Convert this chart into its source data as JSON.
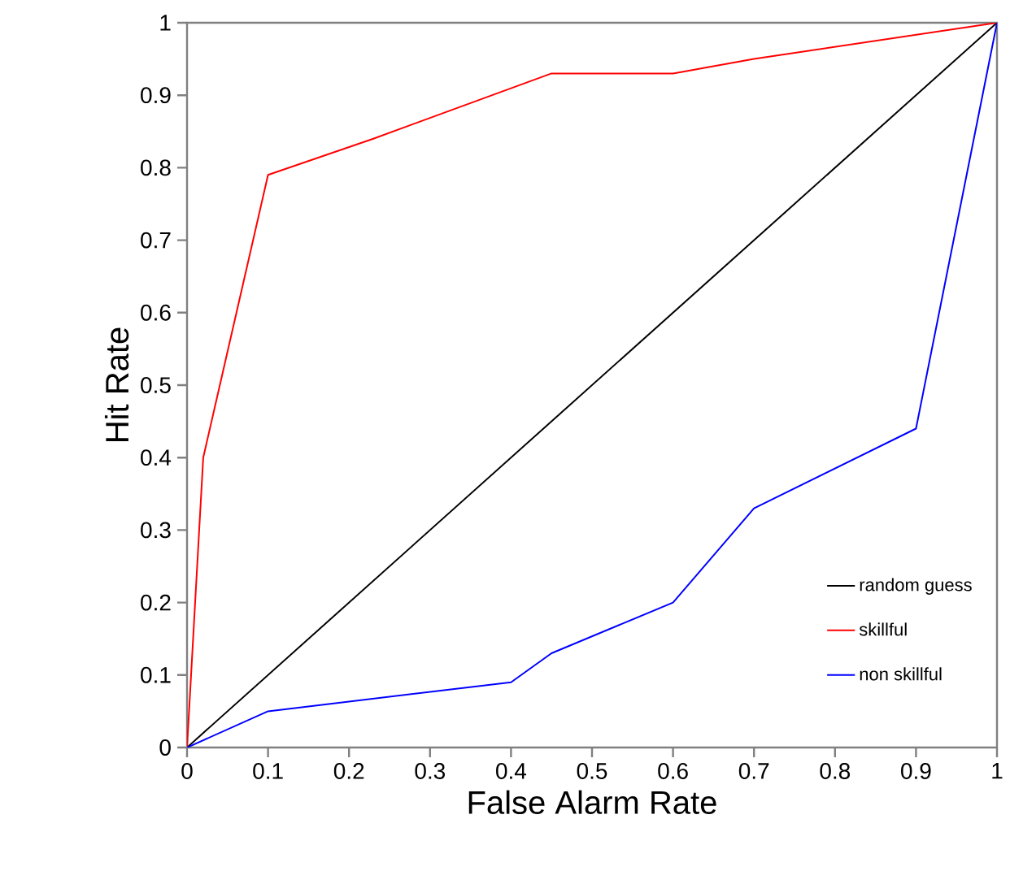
{
  "chart_data": {
    "type": "line",
    "xlabel": "False Alarm Rate",
    "ylabel": "Hit Rate",
    "xlim": [
      0,
      1
    ],
    "ylim": [
      0,
      1
    ],
    "xticks": [
      0,
      0.1,
      0.2,
      0.3,
      0.4,
      0.5,
      0.6,
      0.7,
      0.8,
      0.9,
      1
    ],
    "yticks": [
      0,
      0.1,
      0.2,
      0.3,
      0.4,
      0.5,
      0.6,
      0.7,
      0.8,
      0.9,
      1
    ],
    "legend": "bottom right",
    "grid": false,
    "marker": "none",
    "line_style": "solid",
    "series": [
      {
        "name": "random guess",
        "color": "#000000",
        "x": [
          0,
          1
        ],
        "values": [
          0,
          1
        ]
      },
      {
        "name": "skillful",
        "color": "#ff0000",
        "x": [
          0,
          0.02,
          0.1,
          0.23,
          0.45,
          0.6,
          0.7,
          1
        ],
        "values": [
          0,
          0.4,
          0.79,
          0.84,
          0.93,
          0.93,
          0.95,
          1
        ]
      },
      {
        "name": "non skillful",
        "color": "#0000ff",
        "x": [
          0,
          0.1,
          0.4,
          0.45,
          0.6,
          0.7,
          0.9,
          1
        ],
        "values": [
          0,
          0.05,
          0.09,
          0.13,
          0.2,
          0.33,
          0.44,
          1
        ]
      }
    ]
  }
}
